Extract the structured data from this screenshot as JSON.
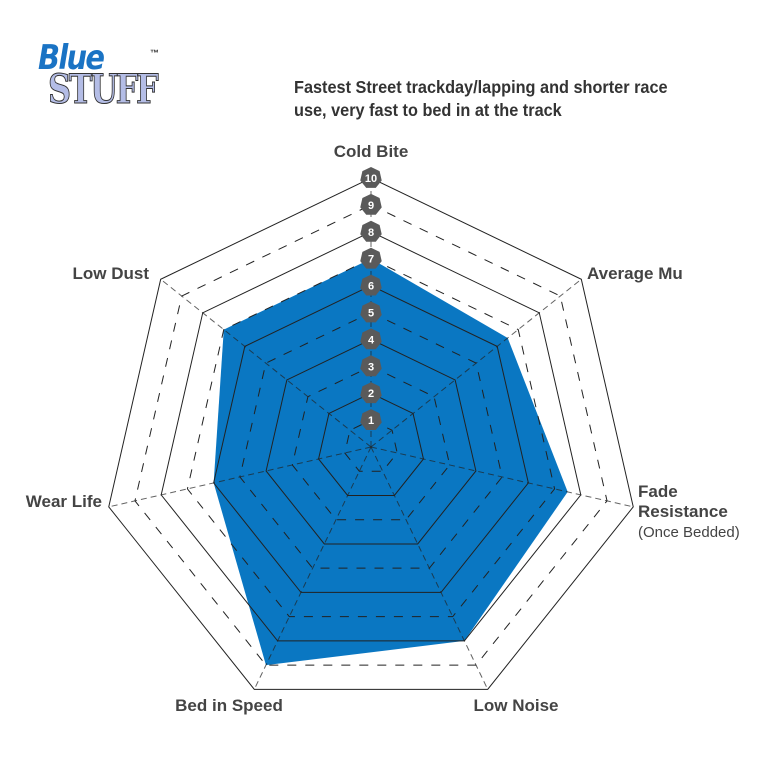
{
  "logo": {
    "line1": "Blue",
    "line2": "STUFF",
    "trademark": "™"
  },
  "subtitle": "Fastest Street trackday/lapping and shorter race use, very fast to bed in at the track",
  "chart_data": {
    "type": "radar",
    "title": "Fastest Street trackday/lapping and shorter race use, very fast to bed in at the track",
    "categories": [
      "Cold Bite",
      "Average Mu",
      "Fade Resistance",
      "Low Noise",
      "Bed in Speed",
      "Wear Life",
      "Low Dust"
    ],
    "category_sublabels": {
      "Fade Resistance": "(Once Bedded)"
    },
    "values": [
      7,
      6.5,
      7.5,
      8,
      9,
      6,
      7
    ],
    "range": [
      0,
      10
    ],
    "ticks": [
      "1",
      "2",
      "3",
      "4",
      "5",
      "6",
      "7",
      "8",
      "9",
      "10"
    ],
    "grid": true,
    "colors": {
      "fill": "#0a77c2",
      "badge": "#5a5a5a",
      "grid": "#222222"
    }
  }
}
